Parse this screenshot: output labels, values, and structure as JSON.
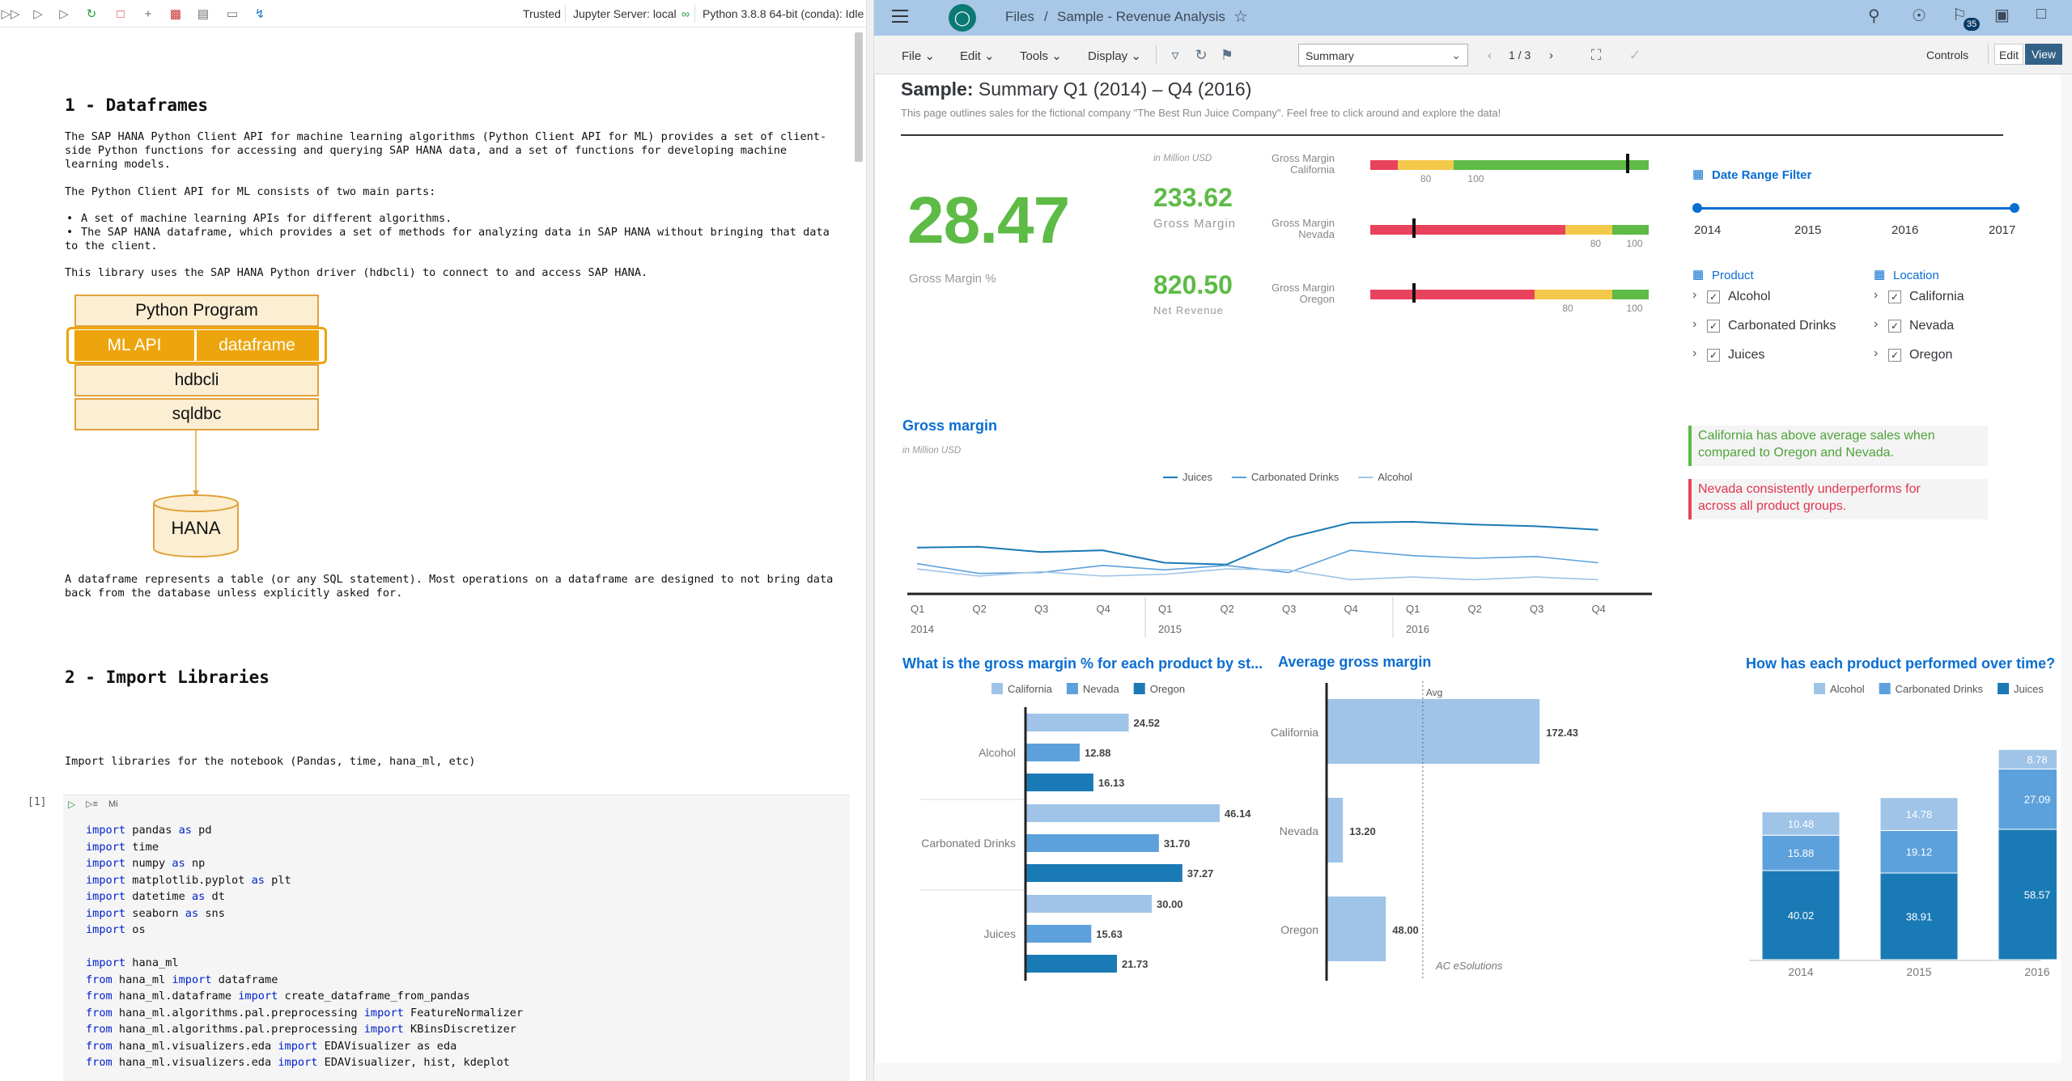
{
  "jupyter": {
    "toolbar": {
      "trusted": "Trusted",
      "server": "Jupyter Server: local",
      "kernel": "Python 3.8.8 64-bit (conda): Idle"
    },
    "h_dataframes": "1 - Dataframes",
    "p1_line1": "The SAP HANA Python Client API for machine learning algorithms (Python Client API for ML) provides a set of client-",
    "p1_line2": "side Python functions for accessing and querying SAP HANA data, and a set of functions for developing machine",
    "p1_line3": "learning models.",
    "p2": "The Python Client API for ML consists of two main parts:",
    "bullet1": "A set of machine learning APIs for different algorithms.",
    "bullet2_line1": "The SAP HANA dataframe, which provides a set of methods for analyzing data in SAP HANA without bringing that data",
    "bullet2_line2": "to the client.",
    "p3": "This library uses the SAP HANA Python driver (hdbcli) to connect to and access SAP HANA.",
    "diagram": {
      "python_program": "Python Program",
      "ml_api": "ML API",
      "dataframe": "dataframe",
      "hdbcli": "hdbcli",
      "sqldbc": "sqldbc",
      "hana": "HANA"
    },
    "p4_line1": "A dataframe represents a table (or any SQL statement). Most operations on a dataframe are designed to not bring data",
    "p4_line2": "back from the database unless explicitly asked for.",
    "h_import": "2 - Import Libraries",
    "p5": "Import libraries for the notebook (Pandas, time, hana_ml, etc)",
    "cell_prompt": "[1]",
    "cell_md": "Mi",
    "code": [
      [
        "import",
        " pandas ",
        "as",
        " pd"
      ],
      [
        "import",
        " time",
        "",
        ""
      ],
      [
        "import",
        " numpy ",
        "as",
        " np"
      ],
      [
        "import",
        " matplotlib.pyplot ",
        "as",
        " plt"
      ],
      [
        "import",
        " datetime ",
        "as",
        " dt"
      ],
      [
        "import",
        " seaborn ",
        "as",
        " sns"
      ],
      [
        "import",
        " os",
        "",
        ""
      ],
      [
        "",
        "",
        "",
        ""
      ],
      [
        "import",
        " hana_ml",
        "",
        ""
      ],
      [
        "from",
        " hana_ml ",
        "import",
        " dataframe"
      ],
      [
        "from",
        " hana_ml.dataframe ",
        "import",
        " create_dataframe_from_pandas"
      ],
      [
        "from",
        " hana_ml.algorithms.pal.preprocessing ",
        "import",
        " FeatureNormalizer"
      ],
      [
        "from",
        " hana_ml.algorithms.pal.preprocessing ",
        "import",
        " KBinsDiscretizer"
      ],
      [
        "from",
        " hana_ml.visualizers.eda ",
        "import",
        " EDAVisualizer as eda"
      ],
      [
        "from",
        " hana_ml.visualizers.eda ",
        "import",
        " EDAVisualizer, hist, kdeplot"
      ]
    ]
  },
  "sac": {
    "breadcrumb_files": "Files",
    "breadcrumb_sep": "/",
    "story_name": "Sample - Revenue Analysis",
    "notif_count": "35",
    "menus": [
      "File",
      "Edit",
      "Tools",
      "Display"
    ],
    "page_select": "Summary",
    "page_num": "1 / 3",
    "controls": "Controls",
    "edit": "Edit",
    "view": "View",
    "title_bold": "Sample:",
    "title_rest": " Summary Q1 (2014) – Q4 (2016)",
    "subtitle": "This page outlines sales for the fictional company \"The Best Run Juice Company\". Feel free to click around and explore the data!",
    "kpi": {
      "big": "28.47",
      "big_label": "Gross Margin %",
      "unit": "in Million USD",
      "gm_value": "233.62",
      "gm_label": "Gross Margin",
      "nr_value": "820.50",
      "nr_label": "Net Revenue"
    },
    "bullets": [
      {
        "l1": "Gross Margin",
        "l2": "California",
        "t1": "80",
        "t2": "100",
        "actual": 0.92
      },
      {
        "l1": "Gross Margin",
        "l2": "Nevada",
        "t1": "80",
        "t2": "100",
        "actual": 0.15
      },
      {
        "l1": "Gross Margin",
        "l2": "Oregon",
        "t1": "80",
        "t2": "100",
        "actual": 0.15
      }
    ],
    "filter": {
      "title": "Date Range Filter",
      "years": [
        "2014",
        "2015",
        "2016",
        "2017"
      ],
      "product_title": "Product",
      "products": [
        "Alcohol",
        "Carbonated Drinks",
        "Juices"
      ],
      "location_title": "Location",
      "locations": [
        "California",
        "Nevada",
        "Oregon"
      ]
    },
    "insight1_l1": "California has above average sales when",
    "insight1_l2": "compared to Oregon and Nevada.",
    "insight2_l1": "Nevada consistently underperforms for",
    "insight2_l2": "across all product groups.",
    "footer": "AC eSolutions",
    "colors": {
      "light": "#9fc4e8",
      "mid": "#5da1dc",
      "dark": "#1a7ab5",
      "green": "#5dbb46",
      "red": "#e9425d",
      "yellow": "#f4c94b",
      "accent": "#0a6ed1"
    }
  },
  "chart_data": [
    {
      "type": "line",
      "title": "Gross margin",
      "subtitle": "in Million USD",
      "categories": [
        "Q1",
        "Q2",
        "Q3",
        "Q4",
        "Q1",
        "Q2",
        "Q3",
        "Q4",
        "Q1",
        "Q2",
        "Q3",
        "Q4"
      ],
      "year_labels": [
        "2014",
        "2015",
        "2016"
      ],
      "series": [
        {
          "name": "Juices",
          "values": [
            5.2,
            5.3,
            4.7,
            4.9,
            3.5,
            3.3,
            6.3,
            8.0,
            8.1,
            7.8,
            7.6,
            7.2
          ]
        },
        {
          "name": "Carbonated Drinks",
          "values": [
            3.4,
            2.3,
            2.4,
            3.2,
            2.7,
            3.2,
            2.4,
            4.9,
            4.3,
            4.0,
            4.2,
            3.5
          ]
        },
        {
          "name": "Alcohol",
          "values": [
            2.8,
            2.0,
            2.5,
            2.0,
            2.2,
            2.8,
            2.7,
            1.6,
            1.9,
            1.6,
            1.9,
            1.6
          ]
        }
      ],
      "ylim": [
        0,
        10
      ]
    },
    {
      "type": "bar",
      "title": "What is the gross margin % for each product by st...",
      "categories": [
        "Alcohol",
        "Carbonated Drinks",
        "Juices"
      ],
      "series": [
        {
          "name": "California",
          "values": [
            24.52,
            46.14,
            30.0
          ]
        },
        {
          "name": "Nevada",
          "values": [
            12.88,
            31.7,
            15.63
          ]
        },
        {
          "name": "Oregon",
          "values": [
            16.13,
            37.27,
            21.73
          ]
        }
      ],
      "xlim": [
        0,
        50
      ]
    },
    {
      "type": "bar",
      "title": "Average gross margin",
      "categories": [
        "California",
        "Nevada",
        "Oregon"
      ],
      "values": [
        172.43,
        13.2,
        48.0
      ],
      "average_label": "Avg",
      "average": 77.88,
      "xlim": [
        0,
        190
      ]
    },
    {
      "type": "bar",
      "title": "How has each product performed over time?",
      "categories": [
        "2014",
        "2015",
        "2016"
      ],
      "series": [
        {
          "name": "Alcohol",
          "values": [
            10.48,
            14.78,
            8.78
          ]
        },
        {
          "name": "Carbonated Drinks",
          "values": [
            15.88,
            19.12,
            27.09
          ]
        },
        {
          "name": "Juices",
          "values": [
            40.02,
            38.91,
            58.57
          ]
        }
      ],
      "ylim": [
        0,
        100
      ]
    }
  ]
}
